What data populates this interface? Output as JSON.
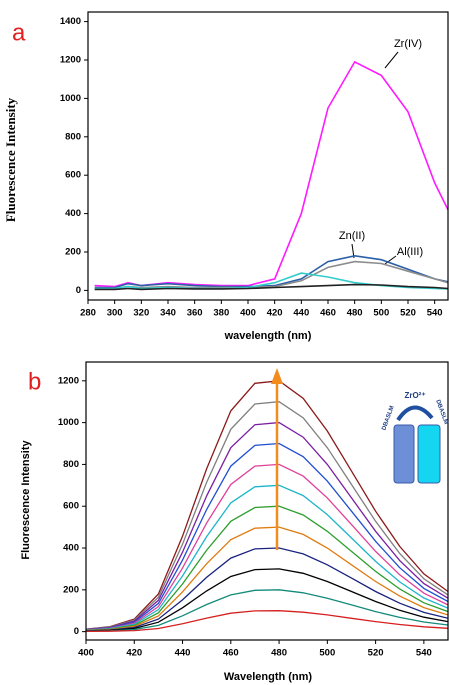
{
  "chart_data": [
    {
      "type": "line",
      "panel_label": "a",
      "xlabel": "wavelength (nm)",
      "ylabel": "Fluorescence Intensity",
      "xlim": [
        280,
        550
      ],
      "ylim": [
        -50,
        1450
      ],
      "xticks": [
        280,
        300,
        320,
        340,
        360,
        380,
        400,
        420,
        440,
        460,
        480,
        500,
        520,
        540
      ],
      "yticks": [
        0,
        200,
        400,
        600,
        800,
        1000,
        1200,
        1400
      ],
      "x": [
        285,
        300,
        310,
        320,
        340,
        360,
        380,
        400,
        420,
        440,
        460,
        480,
        500,
        520,
        540,
        550
      ],
      "series": [
        {
          "name": "Zr(IV)",
          "color": "#ff1aff",
          "values": [
            25,
            20,
            40,
            25,
            40,
            30,
            25,
            25,
            60,
            400,
            950,
            1190,
            1120,
            930,
            560,
            420
          ]
        },
        {
          "name": "Zn(II)",
          "color": "#2b5fa8",
          "values": [
            15,
            15,
            35,
            25,
            35,
            25,
            20,
            20,
            25,
            60,
            150,
            180,
            160,
            110,
            60,
            45
          ]
        },
        {
          "name": "Al(III)",
          "color": "#8c8c8c",
          "values": [
            10,
            10,
            20,
            15,
            20,
            15,
            15,
            15,
            20,
            50,
            120,
            150,
            140,
            100,
            60,
            40
          ]
        },
        {
          "color": "#33cccc",
          "values": [
            10,
            10,
            20,
            10,
            15,
            10,
            10,
            15,
            40,
            90,
            70,
            40,
            25,
            15,
            10,
            8
          ]
        },
        {
          "color": "#222222",
          "values": [
            5,
            5,
            10,
            5,
            10,
            8,
            8,
            10,
            15,
            20,
            25,
            30,
            28,
            20,
            15,
            10
          ]
        }
      ]
    },
    {
      "type": "line",
      "panel_label": "b",
      "xlabel": "Wavelength (nm)",
      "ylabel": "Fluorescence  Intensity",
      "xlim": [
        400,
        550
      ],
      "ylim": [
        -40,
        1290
      ],
      "xticks": [
        400,
        420,
        440,
        460,
        480,
        500,
        520,
        540
      ],
      "yticks": [
        0,
        200,
        400,
        600,
        800,
        1000,
        1200
      ],
      "inset": {
        "top": "ZrO²⁺",
        "left": "DBASLM",
        "right": "DBASLM"
      },
      "x": [
        400,
        410,
        420,
        430,
        440,
        450,
        460,
        470,
        480,
        490,
        500,
        510,
        520,
        530,
        540,
        550
      ],
      "series": [
        {
          "color": "#8b1a1a",
          "values": [
            12,
            24,
            60,
            180,
            456,
            780,
            1056,
            1188,
            1200,
            1116,
            960,
            768,
            576,
            408,
            276,
            192
          ]
        },
        {
          "color": "#7f7f7f",
          "values": [
            11,
            22,
            55,
            165,
            418,
            715,
            968,
            1089,
            1100,
            1023,
            880,
            704,
            528,
            374,
            253,
            176
          ]
        },
        {
          "color": "#7a1fa2",
          "values": [
            10,
            20,
            50,
            150,
            380,
            650,
            880,
            990,
            1000,
            930,
            800,
            640,
            480,
            340,
            230,
            160
          ]
        },
        {
          "color": "#1f4fd1",
          "values": [
            9,
            18,
            45,
            135,
            342,
            585,
            792,
            891,
            900,
            837,
            720,
            576,
            432,
            306,
            207,
            144
          ]
        },
        {
          "color": "#e0409a",
          "values": [
            8,
            16,
            40,
            120,
            304,
            520,
            704,
            792,
            800,
            744,
            640,
            512,
            384,
            272,
            184,
            128
          ]
        },
        {
          "color": "#1fb5c9",
          "values": [
            7,
            14,
            35,
            105,
            266,
            455,
            616,
            693,
            700,
            651,
            560,
            448,
            336,
            238,
            161,
            112
          ]
        },
        {
          "color": "#2e9e2e",
          "values": [
            6,
            12,
            30,
            90,
            228,
            390,
            528,
            594,
            600,
            558,
            480,
            384,
            288,
            204,
            138,
            96
          ]
        },
        {
          "color": "#e07b12",
          "values": [
            5,
            10,
            25,
            75,
            190,
            325,
            440,
            495,
            500,
            465,
            400,
            320,
            240,
            170,
            115,
            80
          ]
        },
        {
          "color": "#1a237e",
          "values": [
            4,
            8,
            20,
            60,
            152,
            260,
            352,
            396,
            400,
            372,
            320,
            256,
            192,
            136,
            92,
            64
          ]
        },
        {
          "color": "#000000",
          "values": [
            3,
            6,
            15,
            45,
            114,
            195,
            264,
            297,
            300,
            279,
            240,
            192,
            144,
            102,
            69,
            48
          ]
        },
        {
          "color": "#138a7a",
          "values": [
            2,
            4,
            10,
            30,
            76,
            130,
            176,
            198,
            200,
            186,
            160,
            128,
            96,
            68,
            46,
            32
          ]
        },
        {
          "color": "#d62020",
          "values": [
            1,
            2,
            5,
            15,
            38,
            65,
            88,
            99,
            100,
            93,
            80,
            64,
            48,
            34,
            23,
            16
          ]
        }
      ]
    }
  ]
}
